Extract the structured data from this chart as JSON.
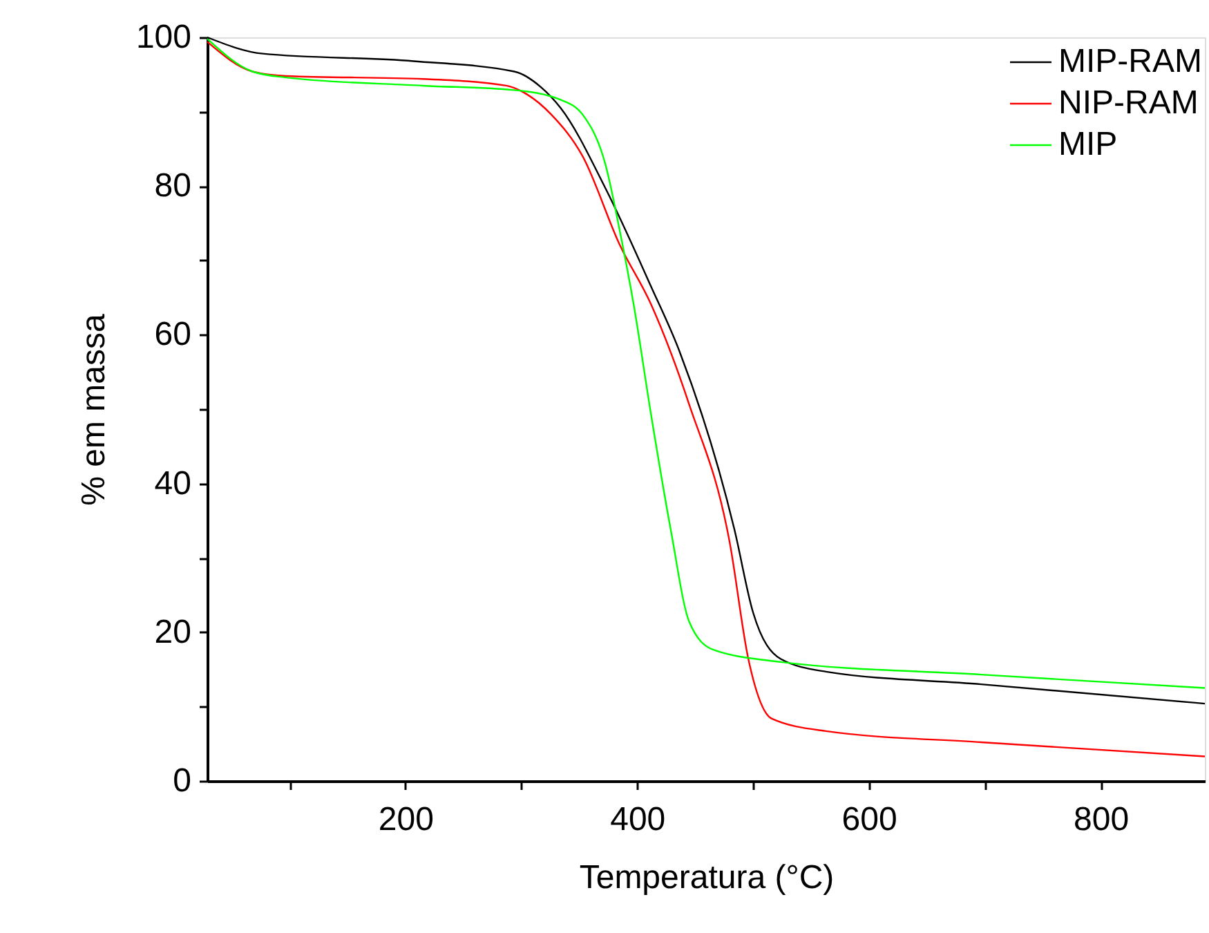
{
  "chart_data": {
    "type": "line",
    "xlabel": "Temperatura (°C)",
    "ylabel": "% em massa",
    "xlim": [
      29,
      890
    ],
    "ylim": [
      0,
      100
    ],
    "xticks": [
      {
        "value": 100,
        "label": null
      },
      200,
      {
        "value": 300,
        "label": null
      },
      400,
      {
        "value": 500,
        "label": null
      },
      600,
      {
        "value": 700,
        "label": null
      },
      800
    ],
    "yticks": [
      0,
      {
        "value": 10,
        "label": null
      },
      20,
      {
        "value": 30,
        "label": null
      },
      40,
      {
        "value": 50,
        "label": null
      },
      60,
      {
        "value": 70,
        "label": null
      },
      80,
      {
        "value": 90,
        "label": null
      },
      100
    ],
    "grid": false,
    "legend": "top right",
    "marker": "none",
    "line_style": "solid",
    "series": [
      {
        "name": "MIP-RAM",
        "color": "#000000",
        "x": [
          29,
          77,
          207,
          294,
          317,
          334,
          373,
          412,
          436,
          484,
          500,
          524,
          563,
          697,
          890
        ],
        "values": [
          100,
          97.8,
          96.8,
          95.4,
          93.3,
          90.5,
          79.6,
          66.5,
          58,
          33.8,
          22.7,
          16.4,
          14.7,
          13.0,
          10.4
        ]
      },
      {
        "name": "NIP-RAM",
        "color": "#ff0000",
        "x": [
          29,
          68,
          97,
          215,
          287,
          302,
          326,
          353,
          385,
          412,
          445,
          480,
          496,
          516,
          563,
          697,
          890
        ],
        "values": [
          99.4,
          95.4,
          94.8,
          94.4,
          93.5,
          92.6,
          89.6,
          84,
          72.1,
          64.1,
          50.6,
          32,
          16.4,
          8.4,
          6.7,
          5.2,
          3.3
        ]
      },
      {
        "name": "MIP",
        "color": "#00ff00",
        "x": [
          29,
          68,
          97,
          215,
          294,
          334,
          353,
          373,
          385,
          397,
          412,
          429,
          445,
          465,
          524,
          697,
          890
        ],
        "values": [
          99.8,
          95.4,
          94.6,
          93.5,
          92.9,
          91.6,
          89.6,
          82.7,
          74,
          64.1,
          49.3,
          33.8,
          21.4,
          17.7,
          16,
          14.3,
          12.5
        ]
      }
    ]
  }
}
